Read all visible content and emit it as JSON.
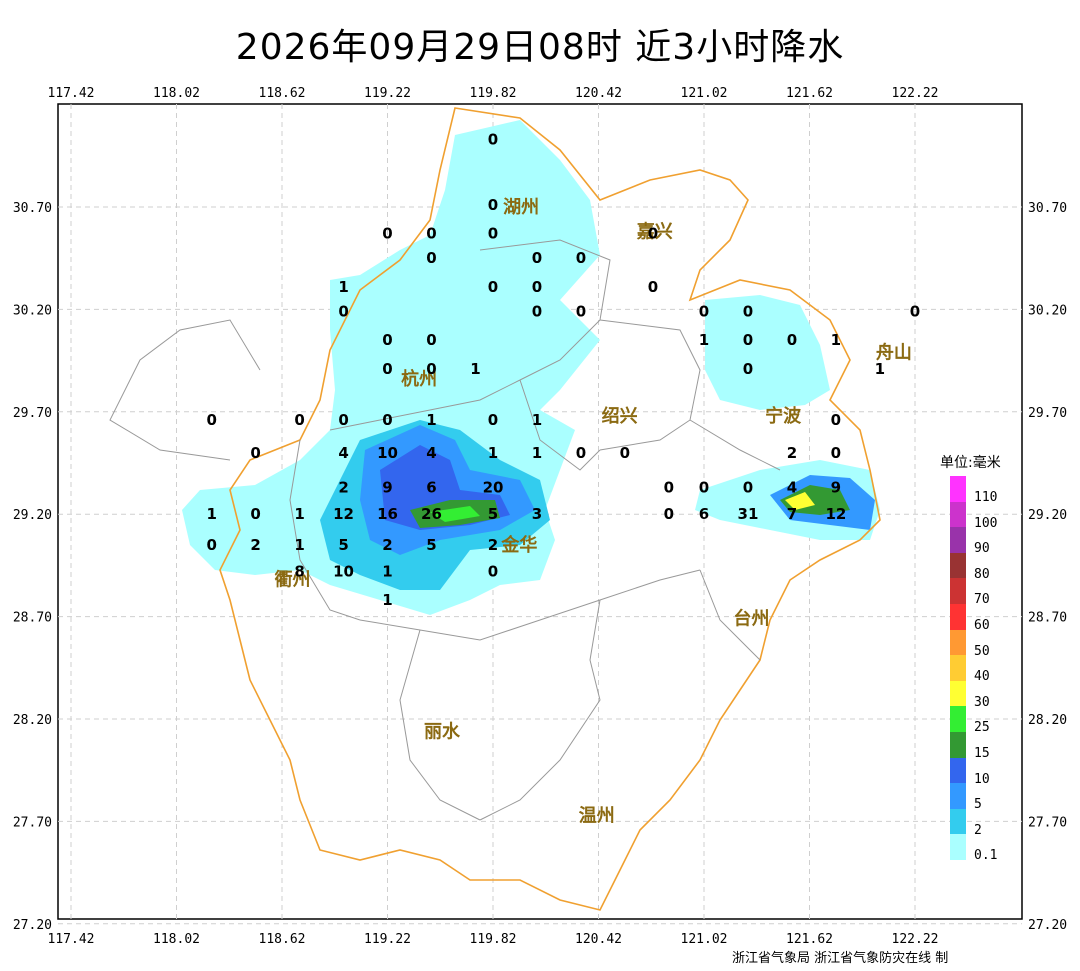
{
  "title": "2026年09月29日08时  近3小时降水",
  "axes": {
    "lon_ticks": [
      "117.42",
      "118.02",
      "118.62",
      "119.22",
      "119.82",
      "120.42",
      "121.02",
      "121.62",
      "122.22"
    ],
    "lat_ticks": [
      "30.70",
      "30.20",
      "29.70",
      "29.20",
      "28.70",
      "28.20",
      "27.70",
      "27.20"
    ]
  },
  "cities": [
    {
      "name": "湖州",
      "lon": 119.98,
      "lat": 30.7
    },
    {
      "name": "嘉兴",
      "lon": 120.74,
      "lat": 30.58
    },
    {
      "name": "杭州",
      "lon": 119.4,
      "lat": 29.86
    },
    {
      "name": "绍兴",
      "lon": 120.54,
      "lat": 29.68
    },
    {
      "name": "宁波",
      "lon": 121.47,
      "lat": 29.68
    },
    {
      "name": "金华",
      "lon": 119.97,
      "lat": 29.05
    },
    {
      "name": "衢州",
      "lon": 118.68,
      "lat": 28.88
    },
    {
      "name": "台州",
      "lon": 121.29,
      "lat": 28.69
    },
    {
      "name": "丽水",
      "lon": 119.53,
      "lat": 28.14
    },
    {
      "name": "温州",
      "lon": 120.41,
      "lat": 27.73
    },
    {
      "name": "舟山",
      "lon": 122.1,
      "lat": 29.99
    }
  ],
  "station_values": [
    {
      "v": "0",
      "lon": 119.82,
      "lat": 31.03
    },
    {
      "v": "0",
      "lon": 119.82,
      "lat": 30.71
    },
    {
      "v": "0",
      "lon": 119.22,
      "lat": 30.57
    },
    {
      "v": "0",
      "lon": 119.47,
      "lat": 30.57
    },
    {
      "v": "0",
      "lon": 119.82,
      "lat": 30.57
    },
    {
      "v": "0",
      "lon": 120.73,
      "lat": 30.57
    },
    {
      "v": "0",
      "lon": 119.47,
      "lat": 30.45
    },
    {
      "v": "0",
      "lon": 120.07,
      "lat": 30.45
    },
    {
      "v": "0",
      "lon": 120.32,
      "lat": 30.45
    },
    {
      "v": "1",
      "lon": 118.97,
      "lat": 30.31
    },
    {
      "v": "0",
      "lon": 119.82,
      "lat": 30.31
    },
    {
      "v": "0",
      "lon": 120.07,
      "lat": 30.31
    },
    {
      "v": "0",
      "lon": 120.73,
      "lat": 30.31
    },
    {
      "v": "0",
      "lon": 118.97,
      "lat": 30.19
    },
    {
      "v": "0",
      "lon": 120.07,
      "lat": 30.19
    },
    {
      "v": "0",
      "lon": 120.32,
      "lat": 30.19
    },
    {
      "v": "0",
      "lon": 121.02,
      "lat": 30.19
    },
    {
      "v": "0",
      "lon": 121.27,
      "lat": 30.19
    },
    {
      "v": "0",
      "lon": 122.22,
      "lat": 30.19
    },
    {
      "v": "0",
      "lon": 119.22,
      "lat": 30.05
    },
    {
      "v": "0",
      "lon": 119.47,
      "lat": 30.05
    },
    {
      "v": "1",
      "lon": 121.02,
      "lat": 30.05
    },
    {
      "v": "0",
      "lon": 121.27,
      "lat": 30.05
    },
    {
      "v": "0",
      "lon": 121.52,
      "lat": 30.05
    },
    {
      "v": "1",
      "lon": 121.77,
      "lat": 30.05
    },
    {
      "v": "0",
      "lon": 119.22,
      "lat": 29.91
    },
    {
      "v": "0",
      "lon": 119.47,
      "lat": 29.91
    },
    {
      "v": "1",
      "lon": 119.72,
      "lat": 29.91
    },
    {
      "v": "0",
      "lon": 121.27,
      "lat": 29.91
    },
    {
      "v": "1",
      "lon": 122.02,
      "lat": 29.91
    },
    {
      "v": "0",
      "lon": 118.22,
      "lat": 29.66
    },
    {
      "v": "0",
      "lon": 118.72,
      "lat": 29.66
    },
    {
      "v": "0",
      "lon": 118.97,
      "lat": 29.66
    },
    {
      "v": "0",
      "lon": 119.22,
      "lat": 29.66
    },
    {
      "v": "1",
      "lon": 119.47,
      "lat": 29.66
    },
    {
      "v": "0",
      "lon": 119.82,
      "lat": 29.66
    },
    {
      "v": "1",
      "lon": 120.07,
      "lat": 29.66
    },
    {
      "v": "0",
      "lon": 121.77,
      "lat": 29.66
    },
    {
      "v": "0",
      "lon": 118.47,
      "lat": 29.5
    },
    {
      "v": "4",
      "lon": 118.97,
      "lat": 29.5
    },
    {
      "v": "10",
      "lon": 119.22,
      "lat": 29.5
    },
    {
      "v": "4",
      "lon": 119.47,
      "lat": 29.5
    },
    {
      "v": "1",
      "lon": 119.82,
      "lat": 29.5
    },
    {
      "v": "1",
      "lon": 120.07,
      "lat": 29.5
    },
    {
      "v": "0",
      "lon": 120.32,
      "lat": 29.5
    },
    {
      "v": "0",
      "lon": 120.57,
      "lat": 29.5
    },
    {
      "v": "2",
      "lon": 121.52,
      "lat": 29.5
    },
    {
      "v": "0",
      "lon": 121.77,
      "lat": 29.5
    },
    {
      "v": "2",
      "lon": 118.97,
      "lat": 29.33
    },
    {
      "v": "9",
      "lon": 119.22,
      "lat": 29.33
    },
    {
      "v": "6",
      "lon": 119.47,
      "lat": 29.33
    },
    {
      "v": "20",
      "lon": 119.82,
      "lat": 29.33
    },
    {
      "v": "0",
      "lon": 120.82,
      "lat": 29.33
    },
    {
      "v": "0",
      "lon": 121.02,
      "lat": 29.33
    },
    {
      "v": "0",
      "lon": 121.27,
      "lat": 29.33
    },
    {
      "v": "4",
      "lon": 121.52,
      "lat": 29.33
    },
    {
      "v": "9",
      "lon": 121.77,
      "lat": 29.33
    },
    {
      "v": "1",
      "lon": 118.22,
      "lat": 29.2
    },
    {
      "v": "0",
      "lon": 118.47,
      "lat": 29.2
    },
    {
      "v": "1",
      "lon": 118.72,
      "lat": 29.2
    },
    {
      "v": "12",
      "lon": 118.97,
      "lat": 29.2
    },
    {
      "v": "16",
      "lon": 119.22,
      "lat": 29.2
    },
    {
      "v": "26",
      "lon": 119.47,
      "lat": 29.2
    },
    {
      "v": "5",
      "lon": 119.82,
      "lat": 29.2
    },
    {
      "v": "3",
      "lon": 120.07,
      "lat": 29.2
    },
    {
      "v": "0",
      "lon": 120.82,
      "lat": 29.2
    },
    {
      "v": "6",
      "lon": 121.02,
      "lat": 29.2
    },
    {
      "v": "31",
      "lon": 121.27,
      "lat": 29.2
    },
    {
      "v": "7",
      "lon": 121.52,
      "lat": 29.2
    },
    {
      "v": "12",
      "lon": 121.77,
      "lat": 29.2
    },
    {
      "v": "0",
      "lon": 118.22,
      "lat": 29.05
    },
    {
      "v": "2",
      "lon": 118.47,
      "lat": 29.05
    },
    {
      "v": "1",
      "lon": 118.72,
      "lat": 29.05
    },
    {
      "v": "5",
      "lon": 118.97,
      "lat": 29.05
    },
    {
      "v": "2",
      "lon": 119.22,
      "lat": 29.05
    },
    {
      "v": "5",
      "lon": 119.47,
      "lat": 29.05
    },
    {
      "v": "2",
      "lon": 119.82,
      "lat": 29.05
    },
    {
      "v": "8",
      "lon": 118.72,
      "lat": 28.92
    },
    {
      "v": "10",
      "lon": 118.97,
      "lat": 28.92
    },
    {
      "v": "1",
      "lon": 119.22,
      "lat": 28.92
    },
    {
      "v": "0",
      "lon": 119.82,
      "lat": 28.92
    },
    {
      "v": "1",
      "lon": 119.22,
      "lat": 28.78
    }
  ],
  "legend": {
    "title": "单位:毫米",
    "items": [
      {
        "label": "110",
        "color": "#ff33ff"
      },
      {
        "label": "100",
        "color": "#cc33cc"
      },
      {
        "label": "90",
        "color": "#9933aa"
      },
      {
        "label": "80",
        "color": "#993333"
      },
      {
        "label": "70",
        "color": "#cc3333"
      },
      {
        "label": "60",
        "color": "#ff3333"
      },
      {
        "label": "50",
        "color": "#ff9933"
      },
      {
        "label": "40",
        "color": "#ffcc33"
      },
      {
        "label": "30",
        "color": "#ffff33"
      },
      {
        "label": "25",
        "color": "#33ee33"
      },
      {
        "label": "15",
        "color": "#339933"
      },
      {
        "label": "10",
        "color": "#3366ee"
      },
      {
        "label": "5",
        "color": "#3399ff"
      },
      {
        "label": "2",
        "color": "#33ccee"
      },
      {
        "label": "0.1",
        "color": "#aaffff"
      }
    ]
  },
  "credit": "浙江省气象局 浙江省气象防灾在线 制",
  "colors": {
    "province_border": "#f0a030",
    "city_border": "#999999",
    "grid": "#cfcfcf",
    "frame": "#000000"
  }
}
